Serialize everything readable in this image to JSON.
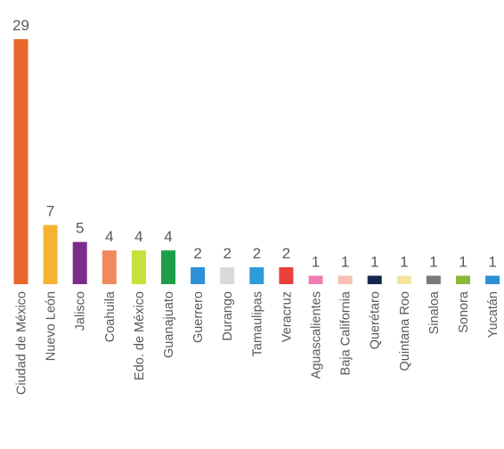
{
  "chart_data": {
    "type": "bar",
    "categories": [
      "Ciudad de México",
      "Nuevo León",
      "Jalisco",
      "Coahuila",
      "Edo. de México",
      "Guanajuato",
      "Guerrero",
      "Durango",
      "Tamaulipas",
      "Veracruz",
      "Aguascalientes",
      "Baja California",
      "Querétaro",
      "Quintana Roo",
      "Sinaloa",
      "Sonora",
      "Yucatán"
    ],
    "values": [
      29,
      7,
      5,
      4,
      4,
      4,
      2,
      2,
      2,
      2,
      1,
      1,
      1,
      1,
      1,
      1,
      1
    ],
    "colors": [
      "#e8672a",
      "#f5b233",
      "#7b2d8e",
      "#f08a5d",
      "#c6e03c",
      "#1f9e4a",
      "#2f8fd8",
      "#d9d9d9",
      "#2f9bd8",
      "#e8403a",
      "#f07cb5",
      "#f9c0b2",
      "#14254f",
      "#f4e6a0",
      "#7a7a7a",
      "#8ab83a",
      "#2c8fd6"
    ],
    "title": "",
    "xlabel": "",
    "ylabel": "",
    "ylim": [
      0,
      29
    ],
    "grid": false,
    "legend": "none"
  }
}
